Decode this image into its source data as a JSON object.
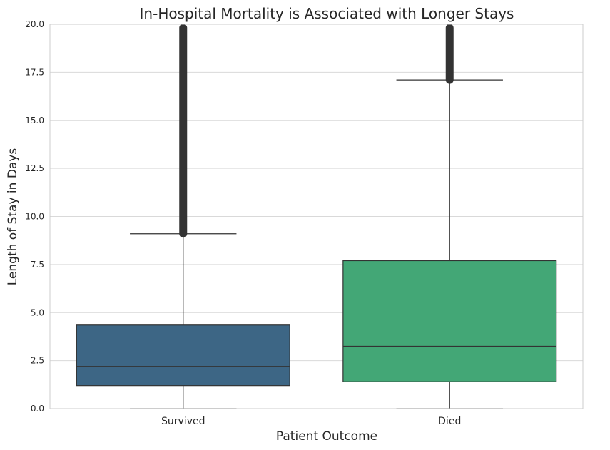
{
  "chart_data": {
    "type": "box",
    "title": "In-Hospital Mortality is Associated with Longer Stays",
    "xlabel": "Patient Outcome",
    "ylabel": "Length of Stay in Days",
    "ylim": [
      0,
      20
    ],
    "yticks": [
      "0.0",
      "2.5",
      "5.0",
      "7.5",
      "10.0",
      "12.5",
      "15.0",
      "17.5",
      "20.0"
    ],
    "grid": true,
    "categories": [
      "Survived",
      "Died"
    ],
    "boxes": [
      {
        "name": "Survived",
        "color": "#3d6685",
        "whisker_low": 0.0,
        "q1": 1.2,
        "median": 2.2,
        "q3": 4.35,
        "whisker_high": 9.1,
        "outliers_from": 9.1,
        "outliers_to": 20.0
      },
      {
        "name": "Died",
        "color": "#43a776",
        "whisker_low": 0.0,
        "q1": 1.4,
        "median": 3.25,
        "q3": 7.7,
        "whisker_high": 17.1,
        "outliers_from": 17.1,
        "outliers_to": 20.0
      }
    ]
  }
}
